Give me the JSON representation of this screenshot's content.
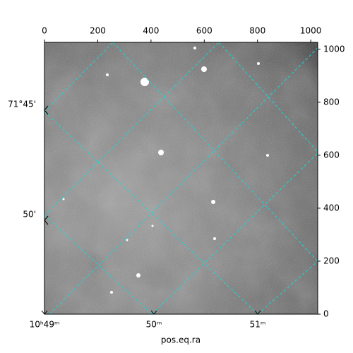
{
  "chart_data": {
    "type": "image",
    "xlabel": "pos.eq.ra",
    "xlim": [
      0,
      1026
    ],
    "ylim": [
      0,
      1026
    ],
    "xticks": [
      0,
      200,
      400,
      600,
      800,
      1000
    ],
    "yticks": [
      0,
      200,
      400,
      600,
      800,
      1000
    ],
    "ra_ticks": [
      "10ʰ49ᵐ",
      "50ᵐ",
      "51ᵐ"
    ],
    "dec_ticks": [
      "71°45'",
      "50'"
    ]
  }
}
